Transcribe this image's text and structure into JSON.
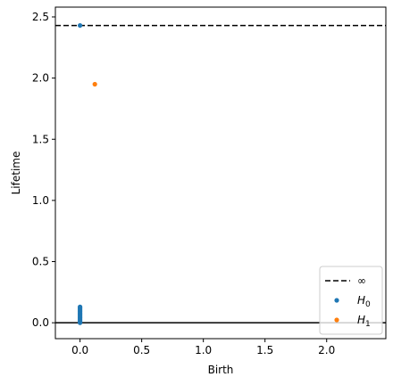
{
  "chart_data": {
    "type": "scatter",
    "title": "",
    "xlabel": "Birth",
    "ylabel": "Lifetime",
    "xlim": [
      -0.2,
      2.48
    ],
    "ylim": [
      -0.13,
      2.58
    ],
    "xticks": [
      0.0,
      0.5,
      1.0,
      1.5,
      2.0
    ],
    "xtick_labels": [
      "0.0",
      "0.5",
      "1.0",
      "1.5",
      "2.0"
    ],
    "yticks": [
      0.0,
      0.5,
      1.0,
      1.5,
      2.0,
      2.5
    ],
    "ytick_labels": [
      "0.0",
      "0.5",
      "1.0",
      "1.5",
      "2.0",
      "2.5"
    ],
    "grid": false,
    "legend_position": "lower-right",
    "infinity_line": {
      "label": "∞",
      "y": 2.43,
      "color": "#000000",
      "style": "dashed"
    },
    "baseline": {
      "y": 0.0,
      "color": "#000000",
      "style": "solid"
    },
    "series": [
      {
        "name": "H0",
        "label_base": "H",
        "label_sub": "0",
        "color": "#1f77b4",
        "points": [
          {
            "x": 0.0,
            "y": 2.43
          },
          {
            "x": 0.0,
            "y": 0.0
          },
          {
            "x": 0.0,
            "y": 0.01
          },
          {
            "x": 0.0,
            "y": 0.02
          },
          {
            "x": 0.0,
            "y": 0.03
          },
          {
            "x": 0.0,
            "y": 0.04
          },
          {
            "x": 0.0,
            "y": 0.05
          },
          {
            "x": 0.0,
            "y": 0.06
          },
          {
            "x": 0.0,
            "y": 0.07
          },
          {
            "x": 0.0,
            "y": 0.08
          },
          {
            "x": 0.0,
            "y": 0.09
          },
          {
            "x": 0.0,
            "y": 0.1
          },
          {
            "x": 0.0,
            "y": 0.11
          },
          {
            "x": 0.0,
            "y": 0.12
          },
          {
            "x": 0.0,
            "y": 0.13
          }
        ]
      },
      {
        "name": "H1",
        "label_base": "H",
        "label_sub": "1",
        "color": "#ff7f0e",
        "points": [
          {
            "x": 0.12,
            "y": 1.95
          }
        ]
      }
    ]
  }
}
